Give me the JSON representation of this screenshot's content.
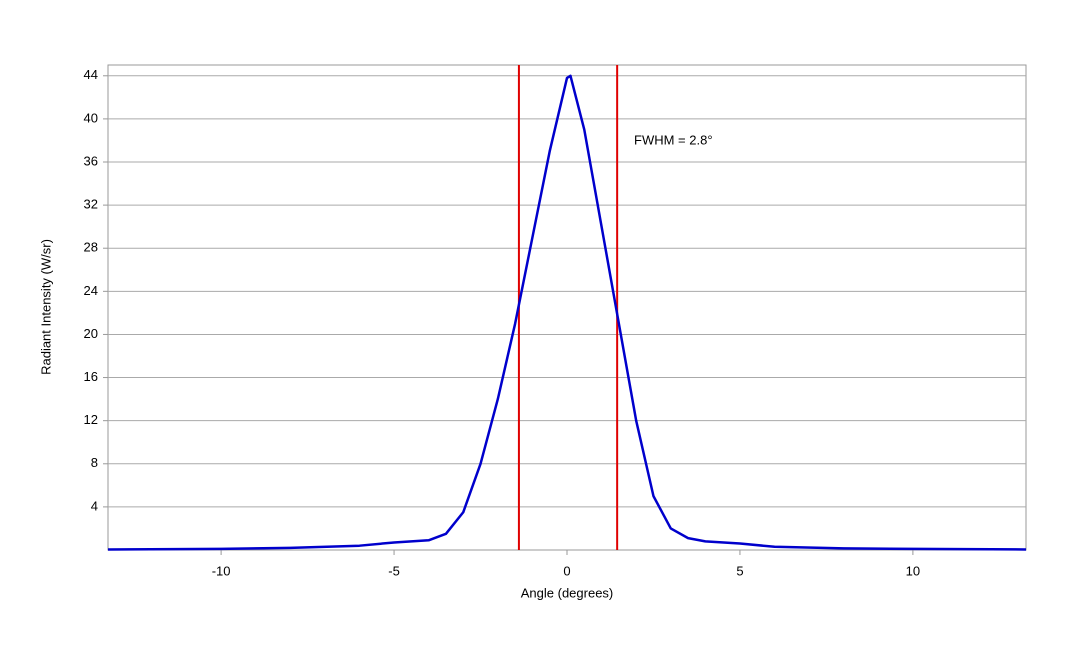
{
  "chart_data": {
    "type": "line",
    "x_label": "Angle (degrees)",
    "y_label": "Radiant Intensity (W/sr)",
    "series": [
      {
        "name": "Radiant intensity",
        "color": "#0000cc",
        "x": [
          -13.27,
          -10,
          -8,
          -6,
          -5,
          -4,
          -3.5,
          -3,
          -2.5,
          -2,
          -1.5,
          -1,
          -0.5,
          0,
          0.1,
          0.5,
          1,
          1.5,
          2,
          2.5,
          3,
          3.5,
          4,
          5,
          6,
          8,
          10,
          13.27
        ],
        "values": [
          0.05,
          0.1,
          0.2,
          0.4,
          0.7,
          0.9,
          1.5,
          3.5,
          8,
          14,
          21,
          29,
          37,
          43.8,
          44,
          39,
          30,
          21,
          12,
          5,
          2,
          1.1,
          0.8,
          0.6,
          0.3,
          0.15,
          0.1,
          0.05
        ]
      }
    ],
    "vlines": {
      "values": [
        -1.39,
        1.45
      ],
      "color": "#e00000"
    },
    "annotation": "FWHM = 2.8°",
    "xlim": [
      -13.27,
      13.27
    ],
    "xticks": [
      -10,
      -5,
      0,
      5,
      10
    ],
    "ylim": [
      0,
      45
    ],
    "yticks": [
      4,
      8,
      12,
      16,
      20,
      24,
      28,
      32,
      36,
      40,
      44
    ],
    "grid": true
  }
}
